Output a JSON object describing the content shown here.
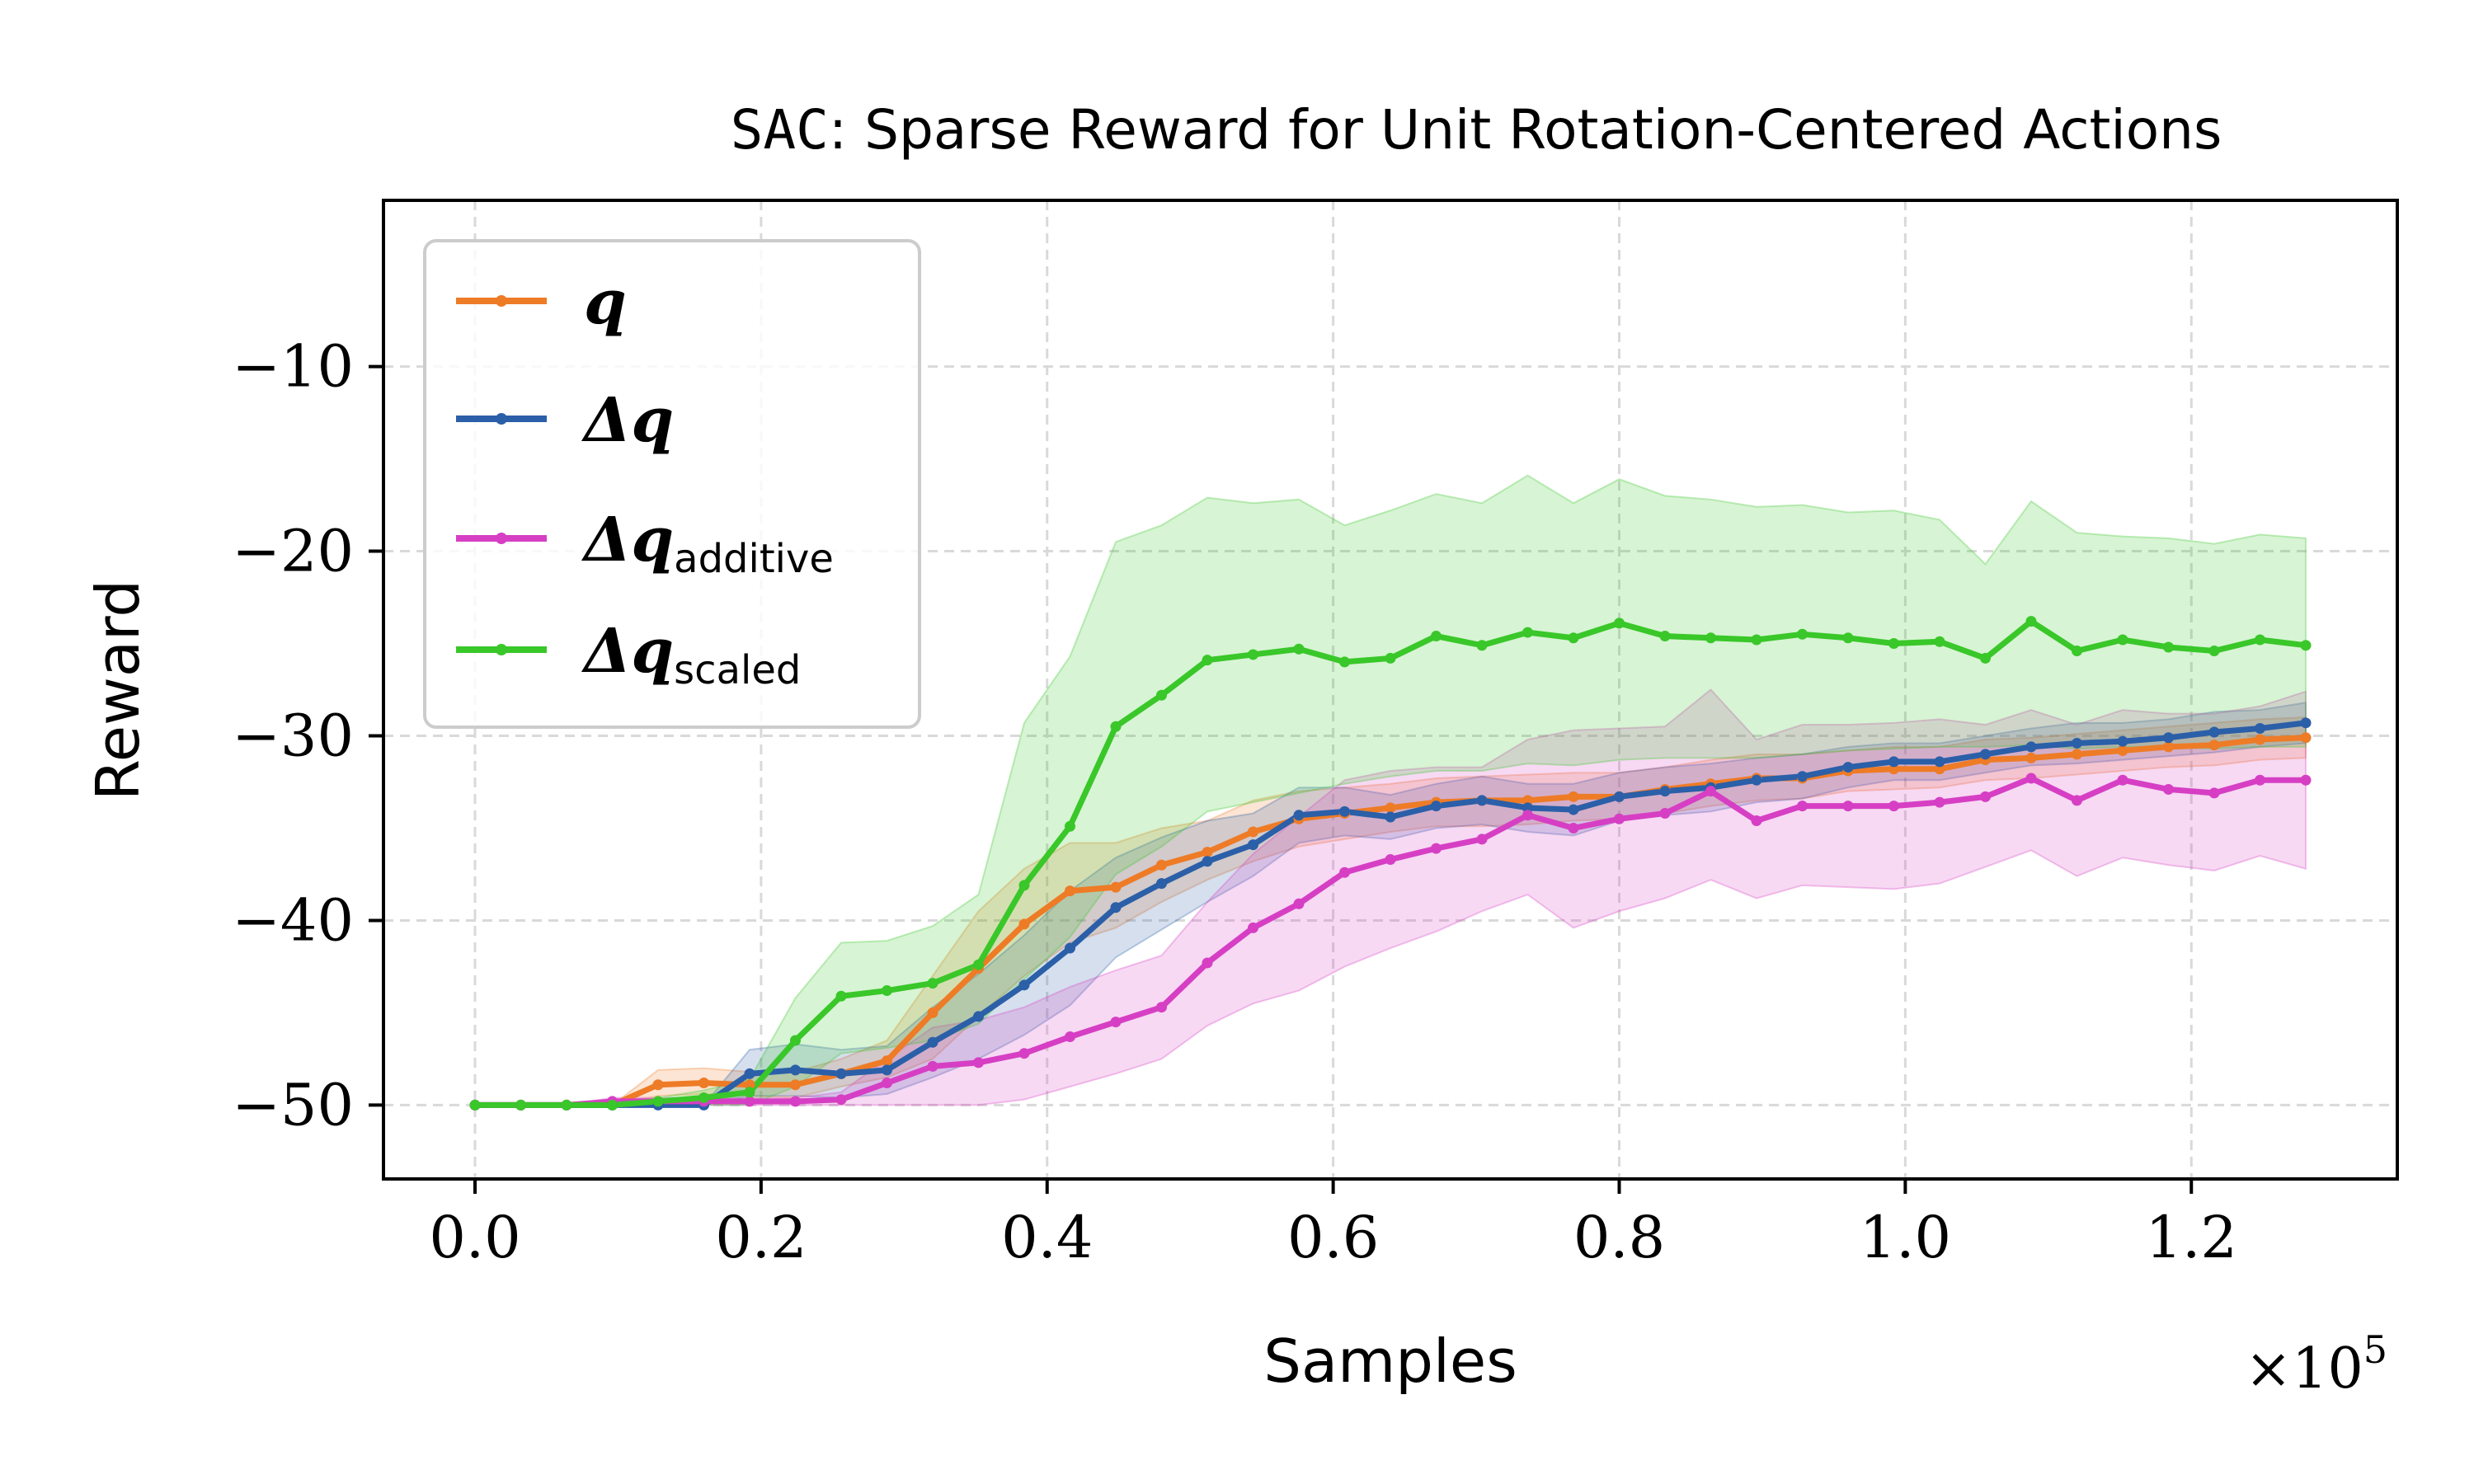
{
  "chart_data": {
    "type": "line",
    "title_prefix": "SAC",
    "title_rest": ": Sparse Reward for Unit Rotation-Centered Actions",
    "xlabel": "Samples",
    "ylabel": "Reward",
    "x_multiplier_base": "×10",
    "x_multiplier_exp": "5",
    "xlim": [
      -0.064,
      1.344
    ],
    "ylim": [
      -54,
      -1.0
    ],
    "xticks": [
      0.0,
      0.2,
      0.4,
      0.6,
      0.8,
      1.0,
      1.2
    ],
    "xtick_labels": [
      "0.0",
      "0.2",
      "0.4",
      "0.6",
      "0.8",
      "1.0",
      "1.2"
    ],
    "yticks": [
      -50,
      -40,
      -30,
      -20,
      -10
    ],
    "ytick_labels": [
      "−50",
      "−40",
      "−30",
      "−20",
      "−10"
    ],
    "grid": true,
    "legend_position": "top-left",
    "x": [
      0.0,
      0.032,
      0.064,
      0.096,
      0.128,
      0.16,
      0.192,
      0.224,
      0.256,
      0.288,
      0.32,
      0.352,
      0.384,
      0.416,
      0.448,
      0.48,
      0.512,
      0.544,
      0.576,
      0.608,
      0.64,
      0.672,
      0.704,
      0.736,
      0.768,
      0.8,
      0.832,
      0.864,
      0.896,
      0.928,
      0.96,
      0.992,
      1.024,
      1.056,
      1.088,
      1.12,
      1.152,
      1.184,
      1.216,
      1.248,
      1.28
    ],
    "series": [
      {
        "name": "q",
        "legend_main": "q",
        "legend_sub": "",
        "color": "#ee7b26",
        "values": [
          -50,
          -50,
          -50,
          -50,
          -48.9,
          -48.8,
          -48.9,
          -48.9,
          -48.3,
          -47.6,
          -45,
          -42.6,
          -40.2,
          -38.4,
          -38.2,
          -37,
          -36.3,
          -35.2,
          -34.5,
          -34.2,
          -33.9,
          -33.6,
          -33.5,
          -33.5,
          -33.3,
          -33.3,
          -32.9,
          -32.6,
          -32.3,
          -32.3,
          -31.9,
          -31.8,
          -31.8,
          -31.3,
          -31.2,
          -31,
          -30.8,
          -30.6,
          -30.5,
          -30.2,
          -30.1
        ],
        "lower": [
          -50,
          -50,
          -50,
          -50,
          -49.5,
          -49.4,
          -49.5,
          -49.6,
          -49,
          -48.5,
          -47.5,
          -45.2,
          -43,
          -41.2,
          -40.4,
          -39,
          -37.8,
          -36.8,
          -36,
          -35.6,
          -35.2,
          -34.9,
          -34.9,
          -34.8,
          -34.6,
          -34.5,
          -34.2,
          -33.8,
          -33.5,
          -33.4,
          -33,
          -32.9,
          -32.8,
          -32.4,
          -32.3,
          -32.1,
          -31.9,
          -31.7,
          -31.6,
          -31.3,
          -31.2
        ],
        "upper": [
          -50,
          -50,
          -50,
          -50,
          -48.1,
          -48,
          -48.2,
          -48.2,
          -47.5,
          -46.5,
          -43,
          -39.5,
          -37.2,
          -35.8,
          -35.8,
          -35,
          -34.6,
          -33.5,
          -33,
          -32.8,
          -32.6,
          -32.3,
          -32.2,
          -32.1,
          -32,
          -32,
          -31.7,
          -31.3,
          -31,
          -31,
          -30.8,
          -30.6,
          -30.6,
          -30.2,
          -30.1,
          -29.9,
          -29.7,
          -29.5,
          -29.3,
          -29.1,
          -29
        ]
      },
      {
        "name": "delta-q",
        "legend_main": "Δq",
        "legend_sub": "",
        "color": "#2b5fa8",
        "values": [
          -50,
          -50,
          -50,
          -50,
          -50,
          -50,
          -48.3,
          -48.1,
          -48.3,
          -48.1,
          -46.6,
          -45.2,
          -43.5,
          -41.5,
          -39.3,
          -38,
          -36.8,
          -35.9,
          -34.3,
          -34.1,
          -34.4,
          -33.8,
          -33.5,
          -33.9,
          -34,
          -33.3,
          -33,
          -32.8,
          -32.4,
          -32.2,
          -31.7,
          -31.4,
          -31.4,
          -31,
          -30.6,
          -30.4,
          -30.3,
          -30.1,
          -29.8,
          -29.6,
          -29.3
        ],
        "lower": [
          -50,
          -50,
          -50,
          -50,
          -50,
          -50,
          -49.5,
          -49.5,
          -49.6,
          -49.4,
          -48.5,
          -47.5,
          -46.2,
          -44.6,
          -42,
          -40.5,
          -39,
          -37.6,
          -35.8,
          -35.4,
          -35.6,
          -35,
          -34.8,
          -35.2,
          -35.4,
          -34.6,
          -34.3,
          -34.1,
          -33.6,
          -33.4,
          -32.8,
          -32.4,
          -32.4,
          -32,
          -31.6,
          -31.5,
          -31.3,
          -31.1,
          -30.9,
          -30.6,
          -30.4
        ],
        "upper": [
          -50,
          -50,
          -50,
          -50,
          -50,
          -50,
          -47,
          -46.7,
          -47,
          -46.8,
          -44.7,
          -42.9,
          -40.8,
          -38.4,
          -36.6,
          -35.5,
          -34.6,
          -34.2,
          -32.8,
          -32.8,
          -33.2,
          -32.6,
          -32.2,
          -32.6,
          -32.6,
          -32,
          -31.7,
          -31.5,
          -31.2,
          -31,
          -30.6,
          -30.4,
          -30.4,
          -30,
          -29.6,
          -29.3,
          -29.3,
          -29.1,
          -28.7,
          -28.6,
          -28.2
        ]
      },
      {
        "name": "delta-q-additive",
        "legend_main": "Δq",
        "legend_sub": "additive",
        "color": "#d63fc4",
        "values": [
          -50,
          -50,
          -50,
          -49.8,
          -49.8,
          -49.8,
          -49.8,
          -49.8,
          -49.7,
          -48.8,
          -47.9,
          -47.7,
          -47.2,
          -46.3,
          -45.5,
          -44.7,
          -42.3,
          -40.4,
          -39.1,
          -37.4,
          -36.7,
          -36.1,
          -35.6,
          -34.3,
          -35,
          -34.5,
          -34.2,
          -33,
          -34.6,
          -33.8,
          -33.8,
          -33.8,
          -33.6,
          -33.3,
          -32.3,
          -33.5,
          -32.4,
          -32.9,
          -33.1,
          -32.4,
          -32.4
        ],
        "lower": [
          -50,
          -50,
          -50,
          -50,
          -50,
          -50,
          -50,
          -50,
          -50,
          -50,
          -50,
          -50,
          -49.7,
          -49,
          -48.3,
          -47.5,
          -45.7,
          -44.5,
          -43.8,
          -42.5,
          -41.5,
          -40.6,
          -39.5,
          -38.6,
          -40.4,
          -39.5,
          -38.8,
          -37.8,
          -38.8,
          -38.1,
          -38.2,
          -38.3,
          -38,
          -37.1,
          -36.2,
          -37.6,
          -36.6,
          -37,
          -37.3,
          -36.5,
          -37.2
        ],
        "upper": [
          -50,
          -50,
          -50,
          -49.6,
          -49.6,
          -49.6,
          -49.6,
          -49.6,
          -49.3,
          -47.5,
          -45.8,
          -45.4,
          -44.7,
          -43.6,
          -42.7,
          -41.9,
          -39,
          -36.4,
          -34.4,
          -32.4,
          -31.9,
          -31.7,
          -31.7,
          -30.2,
          -29.7,
          -29.6,
          -29.5,
          -27.5,
          -30.2,
          -29.4,
          -29.4,
          -29.3,
          -29.1,
          -29.4,
          -28.6,
          -29.4,
          -28.6,
          -28.8,
          -28.8,
          -28.4,
          -27.6
        ]
      },
      {
        "name": "delta-q-scaled",
        "legend_main": "Δq",
        "legend_sub": "scaled",
        "color": "#39c729",
        "values": [
          -50,
          -50,
          -50,
          -50,
          -49.8,
          -49.6,
          -49.3,
          -46.5,
          -44.1,
          -43.8,
          -43.4,
          -42.4,
          -38.1,
          -34.9,
          -29.5,
          -27.8,
          -25.9,
          -25.6,
          -25.3,
          -26,
          -25.8,
          -24.6,
          -25.1,
          -24.4,
          -24.7,
          -23.9,
          -24.6,
          -24.7,
          -24.8,
          -24.5,
          -24.7,
          -25,
          -24.9,
          -25.8,
          -23.8,
          -25.4,
          -24.8,
          -25.2,
          -25.4,
          -24.8,
          -25.1
        ],
        "lower": [
          -50,
          -50,
          -50,
          -50,
          -50,
          -50,
          -50,
          -49,
          -47.2,
          -46.9,
          -46.5,
          -45.6,
          -43.2,
          -40.9,
          -37.5,
          -36,
          -34.1,
          -33.6,
          -33.1,
          -32.6,
          -32.2,
          -31.9,
          -31.9,
          -31.5,
          -31.6,
          -31.3,
          -31.2,
          -31.2,
          -31.2,
          -31,
          -30.8,
          -30.7,
          -30.6,
          -30.6,
          -30.5,
          -30.7,
          -30.6,
          -30.6,
          -30.7,
          -30.6,
          -30.6
        ],
        "upper": [
          -50,
          -50,
          -50,
          -50,
          -49.6,
          -49.2,
          -48.6,
          -44.2,
          -41.2,
          -41.1,
          -40.3,
          -38.6,
          -29.3,
          -25.7,
          -19.5,
          -18.6,
          -17.1,
          -17.4,
          -17.2,
          -18.6,
          -17.8,
          -16.9,
          -17.4,
          -15.9,
          -17.4,
          -16.1,
          -17,
          -17.2,
          -17.6,
          -17.5,
          -17.9,
          -17.8,
          -18.3,
          -20.7,
          -17.3,
          -19,
          -19.2,
          -19.3,
          -19.6,
          -19.1,
          -19.3
        ]
      }
    ]
  }
}
